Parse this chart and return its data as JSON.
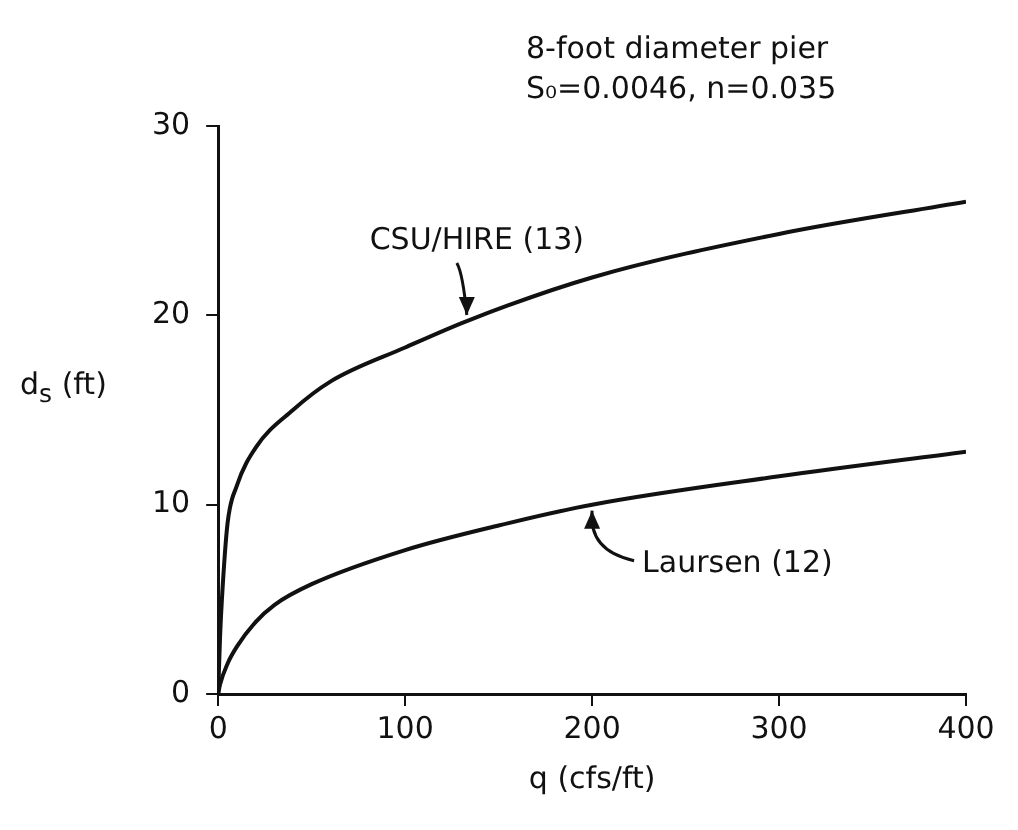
{
  "chart_data": {
    "type": "line",
    "title": "8-foot diameter pier",
    "subtitle": "S₀=0.0046, n=0.035",
    "xlabel": "q (cfs/ft)",
    "ylabel": "d$_{s}$ (ft)",
    "series": [
      {
        "name": "CSU/HIRE (13)",
        "color": "#111111",
        "x": [
          0,
          1,
          2,
          5,
          10,
          20,
          40,
          60,
          100,
          133,
          200,
          300,
          400
        ],
        "values": [
          0,
          3,
          5,
          9,
          11,
          13,
          15,
          16.5,
          18.3,
          19.7,
          22,
          24.3,
          26
        ]
      },
      {
        "name": "Laursen (12)",
        "color": "#111111",
        "x": [
          0,
          1,
          5,
          10,
          20,
          30,
          50,
          100,
          150,
          200,
          300,
          400
        ],
        "values": [
          0,
          0.5,
          1.6,
          2.5,
          3.8,
          4.7,
          5.8,
          7.6,
          8.9,
          10,
          11.5,
          12.8
        ]
      }
    ],
    "xlim": [
      0,
      400
    ],
    "xticks": [
      0,
      100,
      200,
      300,
      400
    ],
    "ylim": [
      0,
      30
    ],
    "yticks": [
      0,
      10,
      20,
      30
    ],
    "grid": false,
    "legend": false,
    "marker": "none",
    "line_style": "solid"
  }
}
